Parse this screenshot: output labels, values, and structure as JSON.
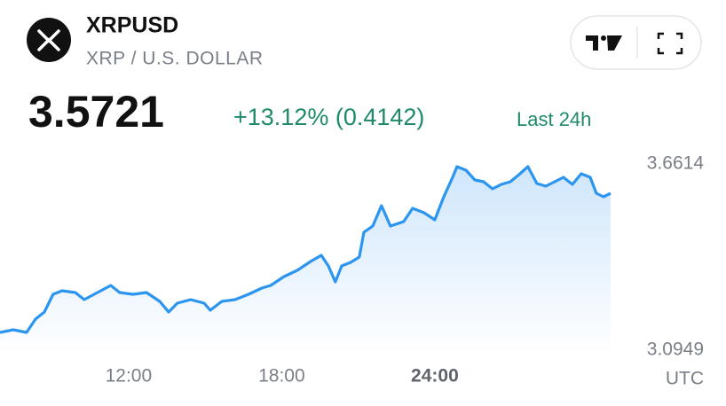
{
  "header": {
    "symbol": "XRPUSD",
    "description": "XRP / U.S. DOLLAR",
    "price": "3.5721",
    "change": "+13.12% (0.4142)",
    "period": "Last 24h"
  },
  "chart_data": {
    "type": "area",
    "color": "#2b95ef",
    "x": [
      6.96,
      7.48,
      8.0,
      8.35,
      8.7,
      9.04,
      9.39,
      9.91,
      10.26,
      10.78,
      11.3,
      11.65,
      12.17,
      12.7,
      13.22,
      13.57,
      13.91,
      14.43,
      14.96,
      15.2,
      15.65,
      16.17,
      16.7,
      17.22,
      17.57,
      18.09,
      18.61,
      19.13,
      19.55,
      19.83,
      20.1,
      20.35,
      20.7,
      21.04,
      21.22,
      21.57,
      21.91,
      22.26,
      22.78,
      23.13,
      23.58,
      24.0,
      24.35,
      24.7,
      24.87,
      25.22,
      25.57,
      25.91,
      26.26,
      26.61,
      26.96,
      27.3,
      27.65,
      28.0,
      28.35,
      28.7,
      29.04,
      29.39,
      29.74,
      30.09,
      30.33,
      30.61,
      30.89
    ],
    "values": [
      3.1489,
      3.1569,
      3.1489,
      3.1893,
      3.2109,
      3.2649,
      3.2756,
      3.2702,
      3.2487,
      3.2702,
      3.2918,
      3.2702,
      3.2649,
      3.2702,
      3.2433,
      3.2109,
      3.2379,
      3.2487,
      3.2379,
      3.2163,
      3.2433,
      3.2487,
      3.2649,
      3.2837,
      3.2918,
      3.3188,
      3.3377,
      3.3647,
      3.3835,
      3.3512,
      3.3026,
      3.3512,
      3.362,
      3.3782,
      3.4537,
      3.4726,
      3.5346,
      3.4726,
      3.4861,
      3.5265,
      3.513,
      3.4915,
      3.5616,
      3.6209,
      3.6533,
      3.6425,
      3.6128,
      3.6074,
      3.5859,
      3.5994,
      3.6074,
      3.629,
      3.6533,
      3.6021,
      3.594,
      3.6074,
      3.6209,
      3.5994,
      3.6317,
      3.6209,
      3.5724,
      3.5616,
      3.5721
    ],
    "xlim": [
      6.96,
      30.89
    ],
    "xticks": [
      {
        "value": 12,
        "label": "12:00"
      },
      {
        "value": 18,
        "label": "18:00"
      },
      {
        "value": 24,
        "label": "24:00"
      }
    ],
    "xlabel": "UTC",
    "ylim": [
      3.0949,
      3.6614
    ],
    "yticks": [
      3.0949,
      3.6614
    ]
  }
}
